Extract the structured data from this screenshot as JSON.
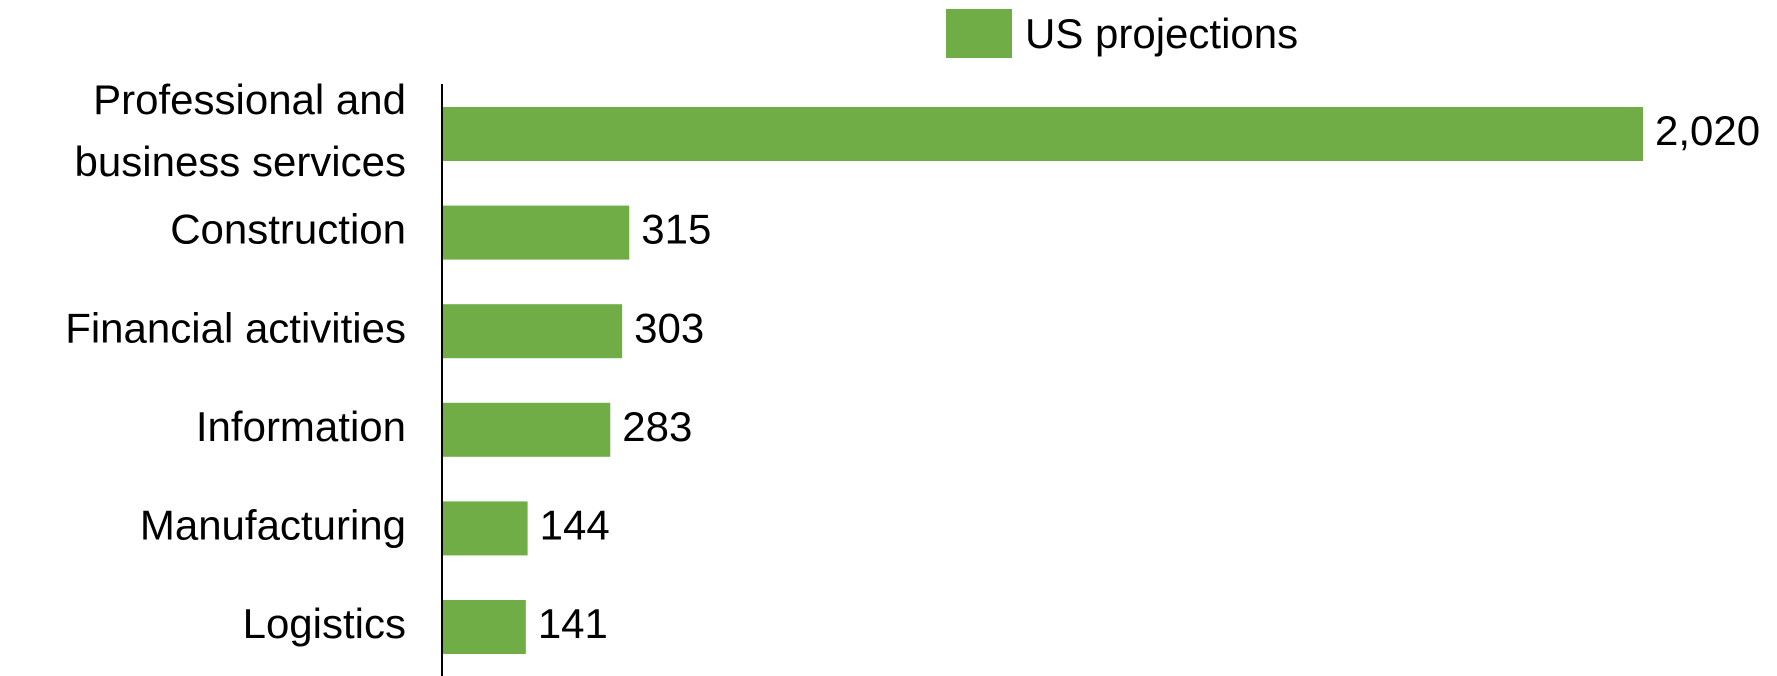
{
  "chart_data": {
    "type": "bar",
    "orientation": "horizontal",
    "categories": [
      "Professional and business services",
      "Construction",
      "Financial activities",
      "Information",
      "Manufacturing",
      "Logistics"
    ],
    "series": [
      {
        "name": "US projections",
        "color": "#70ad47",
        "values": [
          2020,
          315,
          303,
          283,
          144,
          141
        ],
        "value_labels": [
          "2,020",
          "315",
          "303",
          "283",
          "144",
          "141"
        ]
      }
    ],
    "legend": "top"
  }
}
